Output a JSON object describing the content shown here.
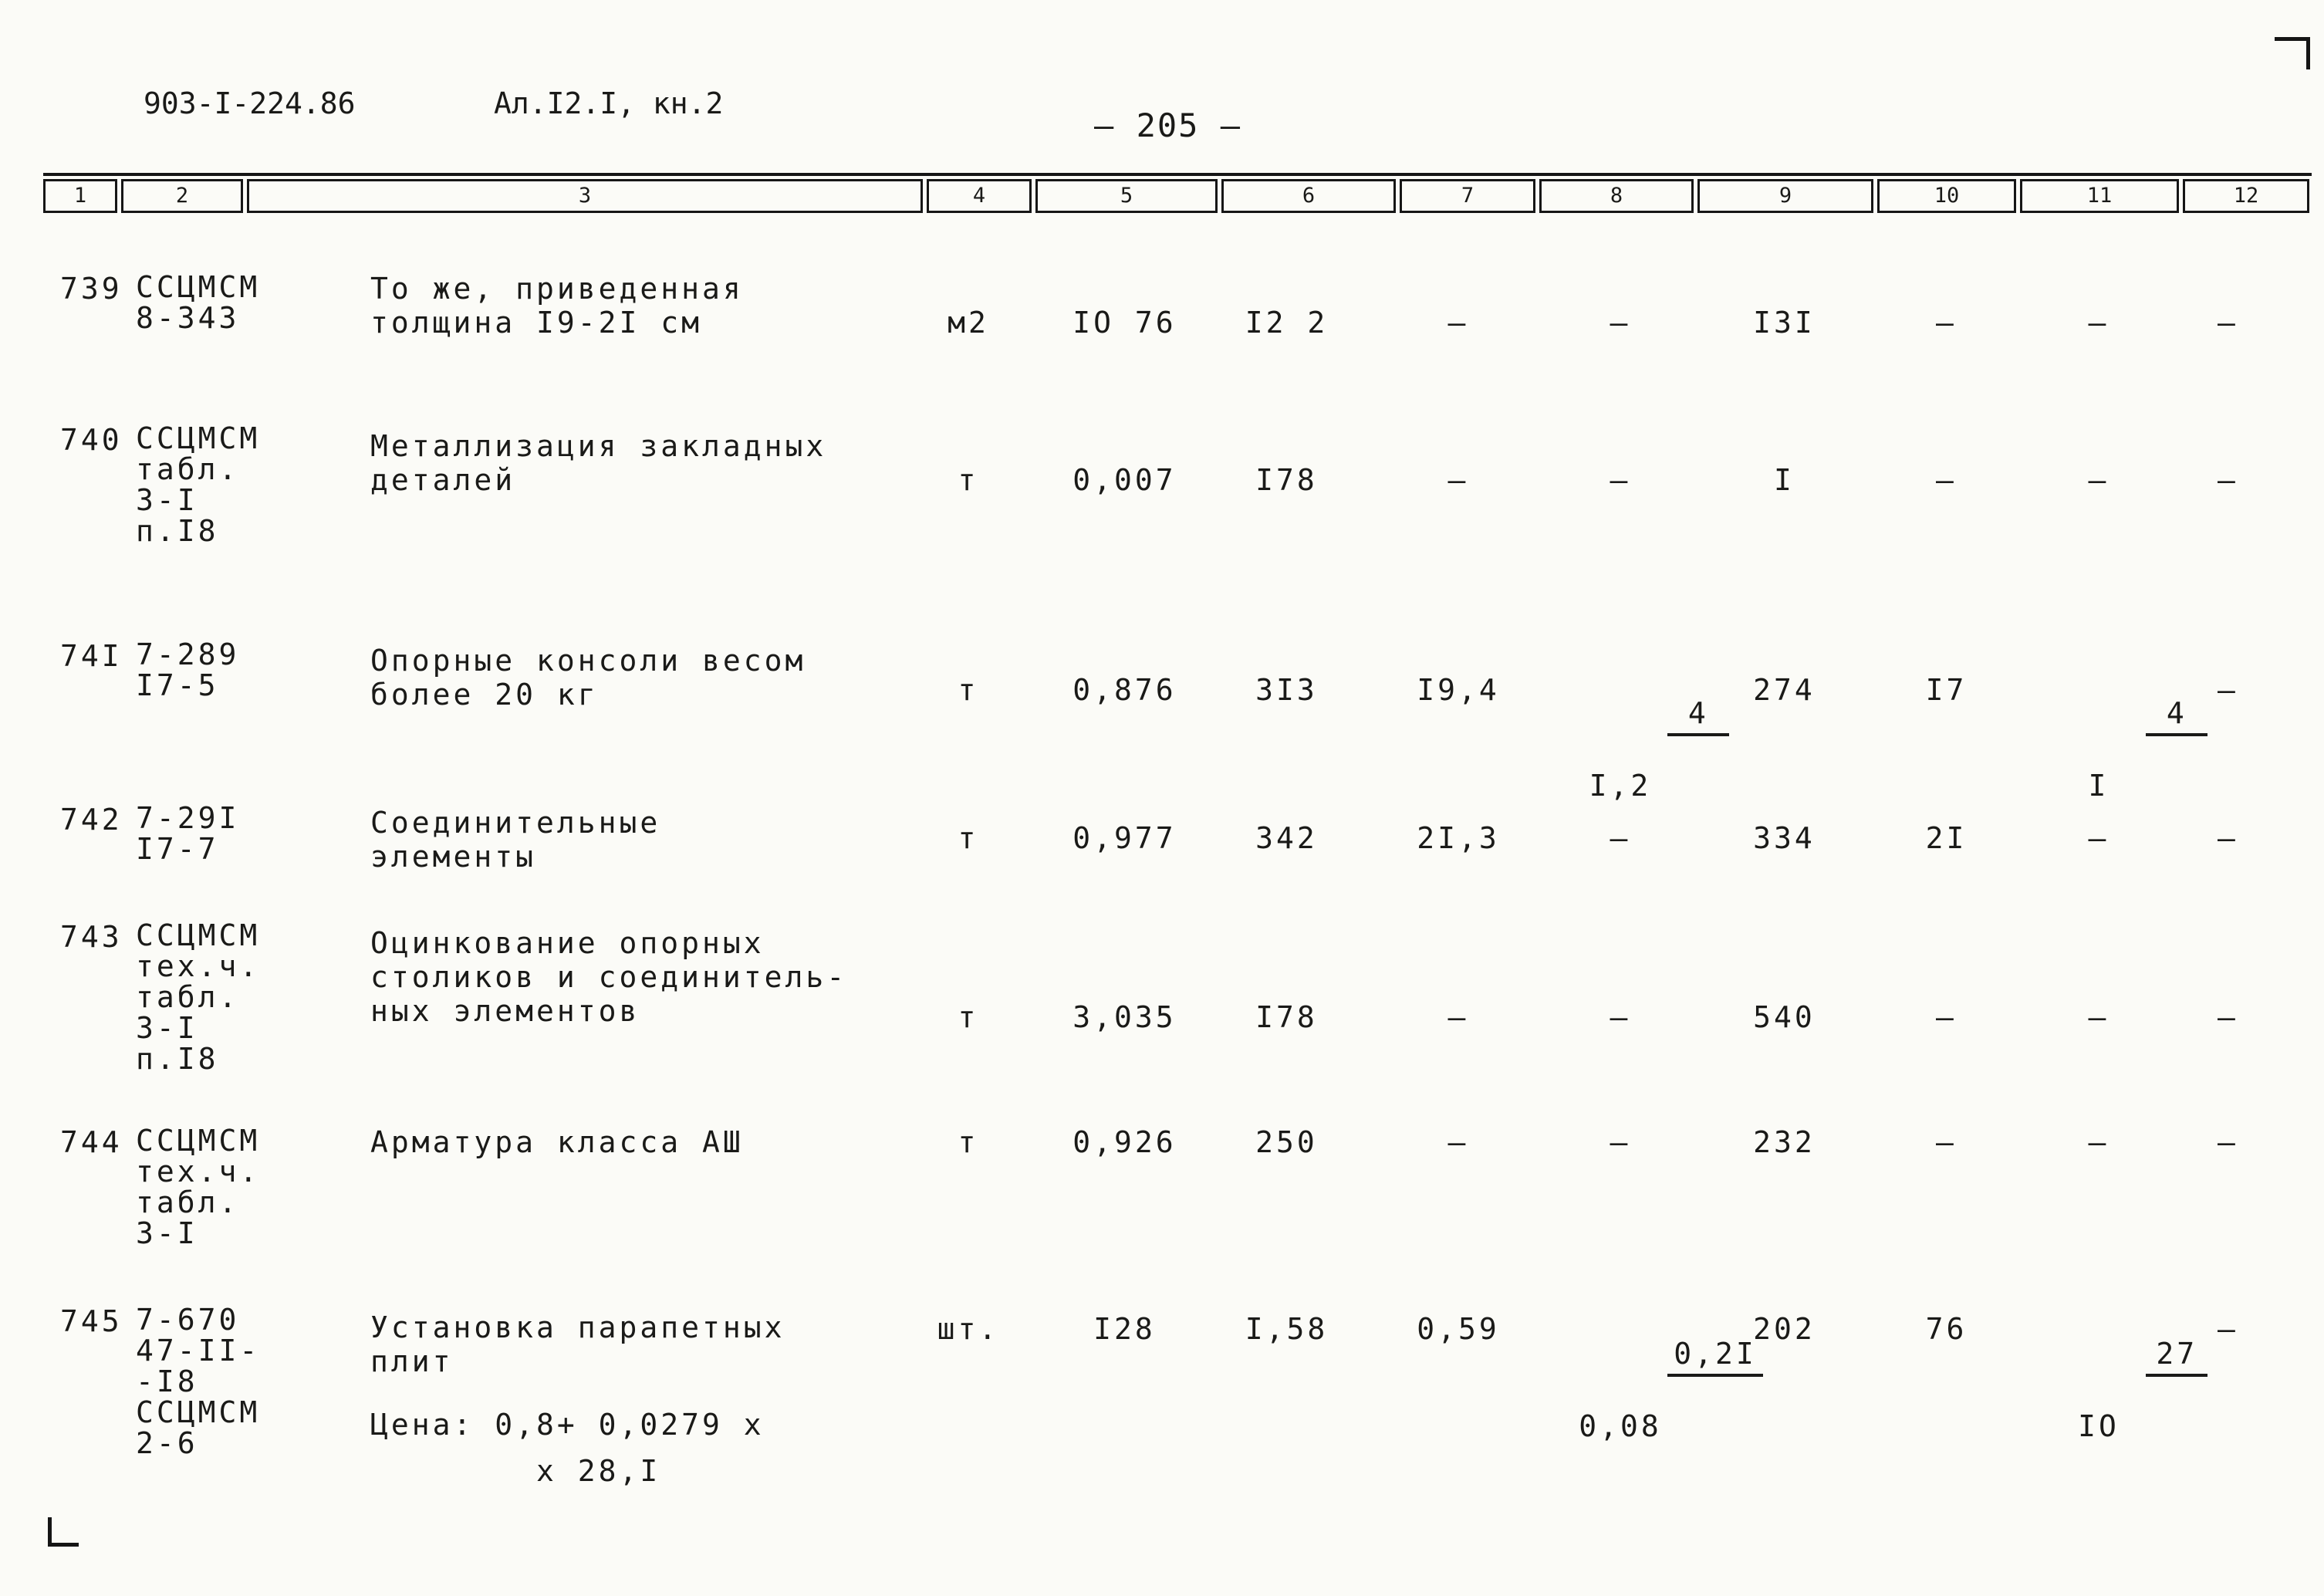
{
  "page": {
    "doc_number": "903-I-224.86",
    "album_ref": "Ал.I2.I, кн.2",
    "page_number": "— 205 —"
  },
  "table": {
    "header_cols": [
      "1",
      "2",
      "3",
      "4",
      "5",
      "6",
      "7",
      "8",
      "9",
      "10",
      "11",
      "12"
    ],
    "rows": [
      {
        "num": "739",
        "code": "ССЦМСМ\n8-343",
        "desc": "То же, приведенная\nтолщина I9-2I см",
        "unit": "м2",
        "c5": "IO 76",
        "c6": "I2 2",
        "c7": "–",
        "c8": "–",
        "c9": "I3I",
        "c10": "–",
        "c11": "–",
        "c12": "–"
      },
      {
        "num": "740",
        "code": "ССЦМСМ\nтабл.\n3-I\nп.I8",
        "desc": "Металлизация закладных\nдеталей",
        "unit": "т",
        "c5": "0,007",
        "c6": "I78",
        "c7": "–",
        "c8": "–",
        "c9": "I",
        "c10": "–",
        "c11": "–",
        "c12": "–"
      },
      {
        "num": "74I",
        "code": "7-289\nI7-5",
        "desc": "Опорные консоли весом\nболее 20 кг",
        "unit": "т",
        "c5": "0,876",
        "c6": "3I3",
        "c7": "I9,4",
        "c8_top": "4",
        "c8_bot": "I,2",
        "c9": "274",
        "c10": "I7",
        "c11_top": "4",
        "c11_bot": "I",
        "c12": "–"
      },
      {
        "num": "742",
        "code": "7-29I\nI7-7",
        "desc": "Соединительные\nэлементы",
        "unit": "т",
        "c5": "0,977",
        "c6": "342",
        "c7": "2I,3",
        "c8": "–",
        "c9": "334",
        "c10": "2I",
        "c11": "–",
        "c12": "–"
      },
      {
        "num": "743",
        "code": "ССЦМСМ\nтех.ч.\nтабл.\n3-I\nп.I8",
        "desc": "Оцинкование опорных\nстоликов и соединитель-\nных элементов",
        "unit": "т",
        "c5": "3,035",
        "c6": "I78",
        "c7": "–",
        "c8": "–",
        "c9": "540",
        "c10": "–",
        "c11": "–",
        "c12": "–"
      },
      {
        "num": "744",
        "code": "ССЦМСМ\nтех.ч.\nтабл.\n3-I",
        "desc": "Арматура класса АШ",
        "unit": "т",
        "c5": "0,926",
        "c6": "250",
        "c7": "–",
        "c8": "–",
        "c9": "232",
        "c10": "–",
        "c11": "–",
        "c12": "–"
      },
      {
        "num": "745",
        "code": "7-670\n47-II-\n-I8\nССЦМСМ\n2-6",
        "desc": "Установка парапетных\nплит",
        "note": "Цена: 0,8+ 0,0279 х\n        х 28,I",
        "unit": "шт.",
        "c5": "I28",
        "c6": "I,58",
        "c7": "0,59",
        "c8_top": "0,2I",
        "c8_bot": "0,08",
        "c9": "202",
        "c10": "76",
        "c11_top": "27",
        "c11_bot": "IO",
        "c12": "–"
      }
    ]
  }
}
